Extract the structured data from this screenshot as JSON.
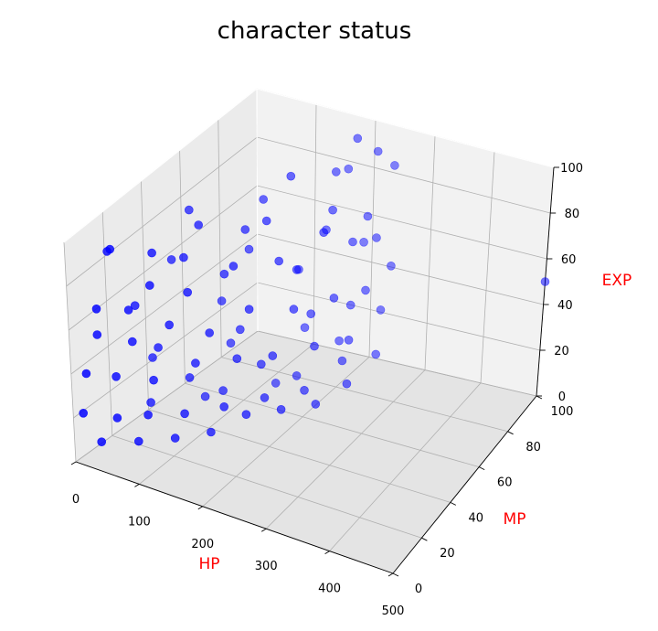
{
  "chart_data": {
    "type": "scatter",
    "title": "character status",
    "xlabel": "HP",
    "ylabel": "MP",
    "zlabel": "EXP",
    "xlim": [
      0,
      500
    ],
    "ylim": [
      0,
      100
    ],
    "zlim": [
      0,
      100
    ],
    "x_ticks": [
      0,
      100,
      200,
      300,
      400,
      500
    ],
    "y_ticks": [
      0,
      20,
      40,
      60,
      80,
      100
    ],
    "z_ticks": [
      0,
      20,
      40,
      60,
      80,
      100
    ],
    "grid": true,
    "colors": {
      "marker": "#0000ff",
      "axis_label": "#ff0000",
      "pane_back": "#f2f2f2",
      "pane_side": "#ebebeb",
      "pane_floor": "#e4e4e4",
      "grid": "#b0b0b0"
    },
    "points": [
      {
        "x": 40,
        "y": 10,
        "z": 95
      },
      {
        "x": 60,
        "y": 25,
        "z": 85
      },
      {
        "x": 90,
        "y": 40,
        "z": 90
      },
      {
        "x": 120,
        "y": 55,
        "z": 80
      },
      {
        "x": 150,
        "y": 70,
        "z": 95
      },
      {
        "x": 180,
        "y": 85,
        "z": 88
      },
      {
        "x": 200,
        "y": 90,
        "z": 100
      },
      {
        "x": 220,
        "y": 95,
        "z": 92
      },
      {
        "x": 240,
        "y": 98,
        "z": 85
      },
      {
        "x": 30,
        "y": 5,
        "z": 70
      },
      {
        "x": 50,
        "y": 15,
        "z": 65
      },
      {
        "x": 70,
        "y": 20,
        "z": 75
      },
      {
        "x": 100,
        "y": 30,
        "z": 68
      },
      {
        "x": 130,
        "y": 45,
        "z": 72
      },
      {
        "x": 160,
        "y": 60,
        "z": 66
      },
      {
        "x": 190,
        "y": 75,
        "z": 70
      },
      {
        "x": 210,
        "y": 85,
        "z": 60
      },
      {
        "x": 230,
        "y": 92,
        "z": 58
      },
      {
        "x": 20,
        "y": 8,
        "z": 55
      },
      {
        "x": 45,
        "y": 18,
        "z": 48
      },
      {
        "x": 75,
        "y": 28,
        "z": 52
      },
      {
        "x": 110,
        "y": 38,
        "z": 45
      },
      {
        "x": 140,
        "y": 50,
        "z": 50
      },
      {
        "x": 170,
        "y": 65,
        "z": 42
      },
      {
        "x": 200,
        "y": 78,
        "z": 40
      },
      {
        "x": 225,
        "y": 88,
        "z": 38
      },
      {
        "x": 245,
        "y": 96,
        "z": 44
      },
      {
        "x": 15,
        "y": 3,
        "z": 40
      },
      {
        "x": 35,
        "y": 12,
        "z": 35
      },
      {
        "x": 65,
        "y": 22,
        "z": 30
      },
      {
        "x": 95,
        "y": 35,
        "z": 32
      },
      {
        "x": 125,
        "y": 48,
        "z": 28
      },
      {
        "x": 155,
        "y": 58,
        "z": 25
      },
      {
        "x": 185,
        "y": 72,
        "z": 22
      },
      {
        "x": 215,
        "y": 82,
        "z": 20
      },
      {
        "x": 235,
        "y": 94,
        "z": 26
      },
      {
        "x": 10,
        "y": 2,
        "z": 22
      },
      {
        "x": 40,
        "y": 10,
        "z": 18
      },
      {
        "x": 60,
        "y": 20,
        "z": 15
      },
      {
        "x": 90,
        "y": 30,
        "z": 12
      },
      {
        "x": 120,
        "y": 42,
        "z": 10
      },
      {
        "x": 150,
        "y": 55,
        "z": 8
      },
      {
        "x": 180,
        "y": 68,
        "z": 5
      },
      {
        "x": 210,
        "y": 80,
        "z": 12
      },
      {
        "x": 240,
        "y": 90,
        "z": 10
      },
      {
        "x": 25,
        "y": 6,
        "z": 8
      },
      {
        "x": 55,
        "y": 16,
        "z": 5
      },
      {
        "x": 85,
        "y": 26,
        "z": 3
      },
      {
        "x": 115,
        "y": 36,
        "z": 2
      },
      {
        "x": 145,
        "y": 46,
        "z": 6
      },
      {
        "x": 175,
        "y": 56,
        "z": 4
      },
      {
        "x": 205,
        "y": 66,
        "z": 2
      },
      {
        "x": 230,
        "y": 76,
        "z": 6
      },
      {
        "x": 20,
        "y": 15,
        "z": 88
      },
      {
        "x": 80,
        "y": 35,
        "z": 78
      },
      {
        "x": 140,
        "y": 60,
        "z": 82
      },
      {
        "x": 190,
        "y": 80,
        "z": 76
      },
      {
        "x": 30,
        "y": 25,
        "z": 58
      },
      {
        "x": 100,
        "y": 50,
        "z": 62
      },
      {
        "x": 160,
        "y": 70,
        "z": 55
      },
      {
        "x": 220,
        "y": 90,
        "z": 68
      },
      {
        "x": 50,
        "y": 30,
        "z": 38
      },
      {
        "x": 110,
        "y": 55,
        "z": 35
      },
      {
        "x": 170,
        "y": 75,
        "z": 33
      },
      {
        "x": 200,
        "y": 88,
        "z": 30
      },
      {
        "x": 70,
        "y": 40,
        "z": 20
      },
      {
        "x": 130,
        "y": 60,
        "z": 18
      },
      {
        "x": 190,
        "y": 85,
        "z": 16
      },
      {
        "x": 35,
        "y": 30,
        "z": 12
      },
      {
        "x": 95,
        "y": 50,
        "z": 10
      },
      {
        "x": 155,
        "y": 72,
        "z": 7
      },
      {
        "x": 60,
        "y": 45,
        "z": 90
      },
      {
        "x": 120,
        "y": 65,
        "z": 86
      },
      {
        "x": 180,
        "y": 92,
        "z": 84
      },
      {
        "x": 45,
        "y": 40,
        "z": 70
      },
      {
        "x": 105,
        "y": 62,
        "z": 65
      },
      {
        "x": 165,
        "y": 85,
        "z": 62
      },
      {
        "x": 80,
        "y": 55,
        "z": 45
      },
      {
        "x": 140,
        "y": 78,
        "z": 48
      },
      {
        "x": 200,
        "y": 95,
        "z": 52
      },
      {
        "x": 25,
        "y": 35,
        "z": 28
      },
      {
        "x": 85,
        "y": 58,
        "z": 25
      },
      {
        "x": 145,
        "y": 80,
        "z": 22
      },
      {
        "x": 65,
        "y": 50,
        "z": 5
      },
      {
        "x": 125,
        "y": 70,
        "z": 3
      },
      {
        "x": 500,
        "y": 100,
        "z": 50
      }
    ]
  }
}
